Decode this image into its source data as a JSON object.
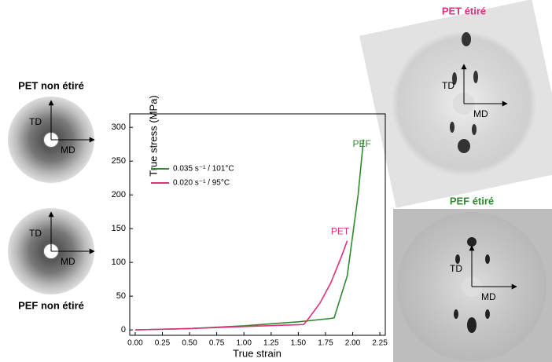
{
  "chart_data": {
    "type": "line",
    "xlabel": "True strain",
    "ylabel": "True stress (MPa)",
    "xlim": [
      -0.05,
      2.3
    ],
    "ylim": [
      -8,
      320
    ],
    "xticks": [
      {
        "value": 0,
        "label": "0.00"
      },
      {
        "value": 0.25,
        "label": "0.25"
      },
      {
        "value": 0.5,
        "label": "0.50"
      },
      {
        "value": 0.75,
        "label": "0.75"
      },
      {
        "value": 1,
        "label": "1.00"
      },
      {
        "value": 1.25,
        "label": "1.25"
      },
      {
        "value": 1.5,
        "label": "1.50"
      },
      {
        "value": 1.75,
        "label": "1.75"
      },
      {
        "value": 2,
        "label": "2.00"
      },
      {
        "value": 2.25,
        "label": "2.25"
      }
    ],
    "yticks": [
      0,
      50,
      100,
      150,
      200,
      250,
      300
    ],
    "legend": "upper left",
    "series": [
      {
        "name": "0.035 s⁻¹ / 101°C",
        "color": "#2e8b2e",
        "x": [
          0,
          0.5,
          1,
          1.5,
          1.8,
          1.83,
          1.95,
          2.0,
          2.05,
          2.08,
          2.1
        ],
        "values": [
          0,
          2,
          6,
          12,
          17,
          18,
          80,
          140,
          200,
          250,
          282
        ]
      },
      {
        "name": "0.020 s⁻¹ / 95°C",
        "color": "#e0307a",
        "x": [
          0,
          0.5,
          1,
          1.55,
          1.6,
          1.7,
          1.8,
          1.9,
          1.95
        ],
        "values": [
          0,
          2,
          5,
          8,
          18,
          40,
          70,
          110,
          132
        ]
      }
    ],
    "annotations": [
      {
        "text": "PEF",
        "x": 2.0,
        "y": 275,
        "color": "#2e8b2e"
      },
      {
        "text": "PET",
        "x": 1.8,
        "y": 145,
        "color": "#e0307a"
      }
    ]
  },
  "panels": [
    {
      "title": "PET non étiré",
      "td": "TD",
      "md": "MD",
      "color": "#000000"
    },
    {
      "title": "PEF non étiré",
      "td": "TD",
      "md": "MD",
      "color": "#000000"
    },
    {
      "title": "PET étiré",
      "td": "TD",
      "md": "MD",
      "color": "#e0307a"
    },
    {
      "title": "PEF étiré",
      "td": "TD",
      "md": "MD",
      "color": "#2e8b2e"
    }
  ]
}
